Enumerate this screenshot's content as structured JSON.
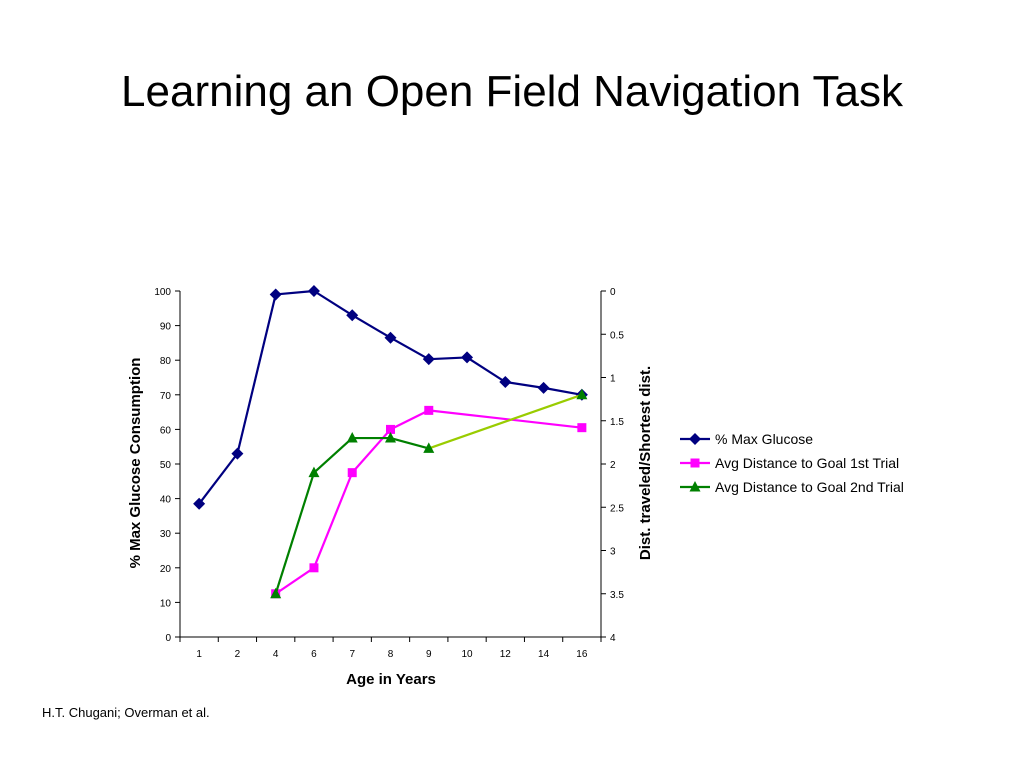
{
  "slide": {
    "title": "Learning an Open Field Navigation Task",
    "citation": "H.T. Chugani; Overman et al."
  },
  "chart_data": {
    "type": "line",
    "title": "",
    "xlabel": "Age in Years",
    "ylabel": "% Max Glucose Consumption",
    "y2label": "Dist. traveled/Shortest dist.",
    "categories": [
      "1",
      "2",
      "4",
      "6",
      "7",
      "8",
      "9",
      "10",
      "12",
      "14",
      "16"
    ],
    "ylim": [
      0,
      100
    ],
    "y_ticks": [
      0,
      10,
      20,
      30,
      40,
      50,
      60,
      70,
      80,
      90,
      100
    ],
    "y2lim": [
      4,
      0
    ],
    "y2_reversed": true,
    "y2_ticks": [
      "0",
      "0.5",
      "1",
      "1.5",
      "2",
      "2.5",
      "3",
      "3.5",
      "4"
    ],
    "grid": false,
    "legend_position": "right",
    "series": [
      {
        "name": "% Max Glucose",
        "axis": "left",
        "color": "#000080",
        "marker": "diamond",
        "values": [
          38.5,
          53,
          99,
          100,
          93,
          86.5,
          80.3,
          80.8,
          73.7,
          72,
          70
        ]
      },
      {
        "name": "Avg Distance to Goal 1st Trial",
        "axis": "right",
        "color": "#ff00ff",
        "marker": "square",
        "values": [
          null,
          null,
          3.5,
          3.2,
          2.1,
          1.6,
          1.38,
          null,
          null,
          null,
          1.58
        ],
        "connector_color": "#ff00ff"
      },
      {
        "name": "Avg Distance to Goal 2nd Trial",
        "axis": "right",
        "color": "#008000",
        "marker": "triangle",
        "values": [
          null,
          null,
          3.5,
          2.1,
          1.7,
          1.7,
          1.82,
          null,
          null,
          null,
          1.2
        ],
        "connector_color": "#99cc00"
      }
    ]
  }
}
